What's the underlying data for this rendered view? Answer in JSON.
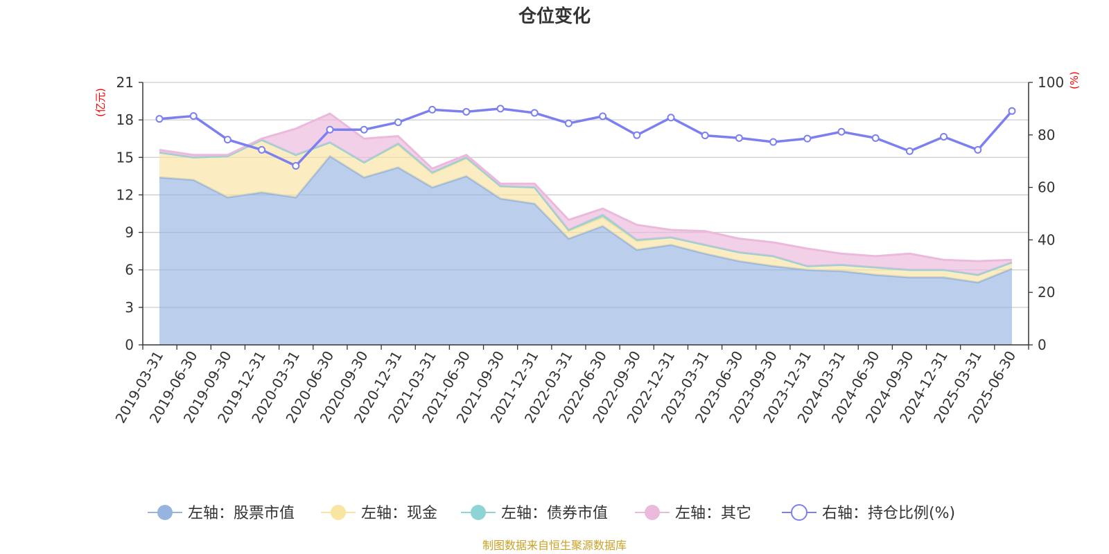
{
  "chart_data": {
    "type": "area",
    "title": "仓位变化",
    "left_unit": "(亿元)",
    "right_unit": "(%)",
    "categories": [
      "2019-03-31",
      "2019-06-30",
      "2019-09-30",
      "2019-12-31",
      "2020-03-31",
      "2020-06-30",
      "2020-09-30",
      "2020-12-31",
      "2021-03-31",
      "2021-06-30",
      "2021-09-30",
      "2021-12-31",
      "2022-03-31",
      "2022-06-30",
      "2022-09-30",
      "2022-12-31",
      "2023-03-31",
      "2023-06-30",
      "2023-09-30",
      "2023-12-31",
      "2024-03-31",
      "2024-06-30",
      "2024-09-30",
      "2024-12-31",
      "2025-03-31",
      "2025-06-30"
    ],
    "left_axis": {
      "min": 0,
      "max": 21,
      "ticks": [
        0,
        3,
        6,
        9,
        12,
        15,
        18,
        21
      ]
    },
    "right_axis": {
      "min": 0,
      "max": 100,
      "ticks": [
        0,
        20,
        40,
        60,
        80,
        100
      ]
    },
    "series": [
      {
        "name": "左轴：股票市值",
        "axis": "left",
        "stacked": true,
        "color": "#96b4e0",
        "values": [
          13.4,
          13.2,
          11.8,
          12.2,
          11.8,
          15.1,
          13.4,
          14.2,
          12.6,
          13.5,
          11.7,
          11.3,
          8.5,
          9.5,
          7.6,
          8.0,
          7.3,
          6.7,
          6.3,
          6.0,
          5.9,
          5.6,
          5.4,
          5.4,
          5.0,
          6.1
        ]
      },
      {
        "name": "左轴：现金",
        "axis": "left",
        "stacked": true,
        "color": "#f9e4a0",
        "values": [
          2.0,
          1.8,
          3.3,
          4.2,
          3.4,
          1.1,
          1.2,
          1.8,
          1.1,
          1.4,
          1.0,
          1.3,
          0.6,
          0.7,
          0.7,
          0.6,
          0.7,
          0.7,
          0.8,
          0.3,
          0.5,
          0.6,
          0.6,
          0.6,
          0.6,
          0.5
        ]
      },
      {
        "name": "左轴：债券市值",
        "axis": "left",
        "stacked": true,
        "color": "#8fd4d4",
        "values": [
          0,
          0,
          0,
          0,
          0,
          0,
          0,
          0.1,
          0.1,
          0.1,
          0,
          0,
          0.1,
          0.2,
          0.1,
          0,
          0,
          0,
          0,
          0,
          0,
          0,
          0,
          0,
          0,
          0
        ]
      },
      {
        "name": "左轴：其它",
        "axis": "left",
        "stacked": true,
        "color": "#ebb9dc",
        "values": [
          0.2,
          0.2,
          0.1,
          0.1,
          2.1,
          2.3,
          1.9,
          0.6,
          0.3,
          0.2,
          0.2,
          0.3,
          0.8,
          0.5,
          1.2,
          0.6,
          1.1,
          1.1,
          1.1,
          1.4,
          0.9,
          0.9,
          1.3,
          0.8,
          1.1,
          0.2
        ]
      },
      {
        "name": "右轴：持仓比例(%)",
        "axis": "right",
        "stacked": false,
        "color": "#7b7fef",
        "values": [
          86.1,
          87.2,
          78.2,
          74.3,
          68.2,
          82.0,
          82.0,
          84.8,
          89.6,
          88.8,
          90.0,
          88.4,
          84.4,
          87.1,
          79.9,
          86.6,
          79.8,
          78.8,
          77.3,
          78.6,
          81.2,
          78.8,
          73.8,
          79.3,
          74.3,
          89.1
        ]
      }
    ],
    "legend_position": "bottom",
    "grid": true,
    "source": "制图数据来自恒生聚源数据库"
  }
}
